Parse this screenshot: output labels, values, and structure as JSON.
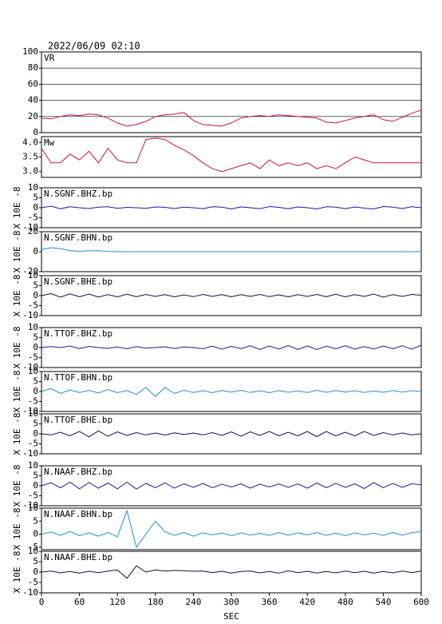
{
  "chart_data": {
    "type": "line",
    "title": "2022/06/09 02:10",
    "xlabel": "SEC",
    "ylabel": "X 10E -8",
    "x": [
      0,
      15,
      30,
      45,
      60,
      75,
      90,
      105,
      120,
      135,
      150,
      165,
      180,
      195,
      210,
      225,
      240,
      255,
      270,
      285,
      300,
      315,
      330,
      345,
      360,
      375,
      390,
      405,
      420,
      435,
      450,
      465,
      480,
      495,
      510,
      525,
      540,
      555,
      570,
      585,
      600
    ],
    "xlim": [
      0,
      600
    ],
    "xticks": [
      0,
      60,
      120,
      180,
      240,
      300,
      360,
      420,
      480,
      540,
      600
    ],
    "panels": [
      {
        "name": "VR",
        "color": "#d0103a",
        "grid": true,
        "ylim": [
          0,
          100
        ],
        "yticks": [
          0,
          20,
          40,
          60,
          80,
          100
        ],
        "values": [
          18,
          17,
          20,
          22,
          21,
          23,
          22,
          18,
          12,
          8,
          10,
          14,
          20,
          22,
          23,
          25,
          15,
          10,
          9,
          8,
          12,
          18,
          20,
          21,
          20,
          22,
          21,
          20,
          19,
          18,
          13,
          12,
          15,
          18,
          20,
          22,
          16,
          14,
          19,
          24,
          28
        ]
      },
      {
        "name": "Mw",
        "color": "#d0103a",
        "grid": false,
        "ylim": [
          2.8,
          4.2
        ],
        "yticks": [
          {
            "value": 3,
            "label": "3.0"
          },
          3.5,
          {
            "value": 4,
            "label": "4.0"
          }
        ],
        "values": [
          3.8,
          3.3,
          3.3,
          3.6,
          3.4,
          3.7,
          3.3,
          3.8,
          3.4,
          3.3,
          3.3,
          4.1,
          4.15,
          4.1,
          3.9,
          3.75,
          3.55,
          3.3,
          3.1,
          3.0,
          3.1,
          3.2,
          3.3,
          3.1,
          3.4,
          3.2,
          3.3,
          3.2,
          3.3,
          3.1,
          3.2,
          3.1,
          3.3,
          3.5,
          3.4,
          3.3,
          3.3,
          3.3,
          3.3,
          3.3,
          3.3
        ]
      },
      {
        "name": "N.SGNF.BHZ.bp",
        "color": "#1a1aa0",
        "grid": false,
        "ylim": [
          -10,
          10
        ],
        "yticks": [
          -10,
          -5,
          0,
          5,
          10
        ],
        "values": [
          0,
          0.8,
          -0.5,
          0.5,
          0,
          -0.4,
          0.3,
          0.5,
          -0.3,
          0.2,
          0,
          -0.3,
          0.4,
          0.2,
          -0.4,
          0.3,
          0,
          -0.5,
          0.5,
          0.3,
          -0.6,
          0.4,
          0,
          -0.5,
          0.6,
          0.2,
          -0.5,
          0.4,
          0,
          -0.6,
          0.5,
          0.3,
          -0.5,
          0.4,
          -0.2,
          -0.6,
          0.6,
          0.3,
          -0.4,
          0.5,
          0
        ]
      },
      {
        "name": "N.SGNF.BHN.bp",
        "color": "#2090d0",
        "grid": false,
        "ylim": [
          -20,
          20
        ],
        "yticks": [
          -20,
          0,
          20
        ],
        "values": [
          2,
          4,
          3,
          1,
          0.5,
          0.8,
          1,
          0.3,
          0,
          0,
          0,
          0,
          0,
          0,
          0,
          0,
          0,
          0,
          0,
          0,
          0,
          0,
          0,
          0,
          0,
          0,
          0,
          0,
          0,
          0,
          0,
          0,
          0,
          0,
          0,
          0,
          0,
          0,
          0,
          0,
          0
        ]
      },
      {
        "name": "N.SGNF.BHE.bp",
        "color": "#101040",
        "grid": false,
        "ylim": [
          -10,
          10
        ],
        "yticks": [
          -10,
          -5,
          0,
          5,
          10
        ],
        "values": [
          0,
          1,
          -0.8,
          0.9,
          -0.6,
          0.8,
          -0.7,
          0.5,
          -0.6,
          0.7,
          -0.5,
          0.6,
          -0.4,
          0.5,
          -0.6,
          0.4,
          -0.5,
          0.6,
          -0.4,
          0.5,
          -0.6,
          0.5,
          -0.4,
          0.6,
          -0.5,
          0.4,
          -0.6,
          0.5,
          -0.4,
          0.6,
          -0.5,
          0.7,
          -0.6,
          0.5,
          -0.4,
          0.8,
          -0.7,
          0.5,
          -0.4,
          0.6,
          0.2
        ]
      },
      {
        "name": "N.TTOF.BHZ.bp",
        "color": "#1a1aa0",
        "grid": false,
        "ylim": [
          -10,
          10
        ],
        "yticks": [
          -10,
          -5,
          0,
          5,
          10
        ],
        "values": [
          0,
          0.5,
          0,
          0.8,
          -0.5,
          0.6,
          0,
          -0.4,
          0.3,
          -0.6,
          0.5,
          -0.3,
          0,
          0.4,
          -0.5,
          0.3,
          0,
          -0.6,
          0.7,
          -0.8,
          0.6,
          -0.5,
          0.9,
          -1,
          0.8,
          -0.7,
          1,
          -0.9,
          0.8,
          -1,
          0.7,
          -0.6,
          0.9,
          -0.8,
          0.5,
          -0.7,
          0.8,
          -0.6,
          0.9,
          -0.8,
          1.2
        ]
      },
      {
        "name": "N.TTOF.BHN.bp",
        "color": "#2090d0",
        "grid": false,
        "ylim": [
          -10,
          10
        ],
        "yticks": [
          -10,
          -5,
          0,
          5,
          10
        ],
        "values": [
          0,
          1.5,
          -1,
          0.8,
          -0.5,
          0.6,
          -0.8,
          1,
          -0.6,
          0.5,
          -1.5,
          2,
          -2.5,
          2,
          -1,
          0.6,
          -0.5,
          0.4,
          -0.6,
          0.5,
          -0.3,
          0.6,
          -0.5,
          0.4,
          -0.6,
          0.5,
          -0.4,
          0.3,
          -0.5,
          0.6,
          -0.4,
          0.5,
          -0.3,
          0.4,
          -0.5,
          0.3,
          -0.4,
          0.5,
          -0.3,
          0.4,
          0
        ]
      },
      {
        "name": "N.TTOF.BHE.bp",
        "color": "#101040",
        "grid": false,
        "ylim": [
          -10,
          10
        ],
        "yticks": [
          -10,
          -5,
          0,
          5,
          10
        ],
        "values": [
          0,
          -0.5,
          0.8,
          -1,
          1.2,
          -1.5,
          1.5,
          -1.2,
          1,
          -0.8,
          0.6,
          -0.5,
          0.4,
          -0.6,
          0.5,
          -0.3,
          0.4,
          -0.5,
          0.6,
          -0.8,
          1,
          -1.2,
          1,
          -0.8,
          1.2,
          -1,
          0.8,
          -1,
          1.2,
          -1.4,
          1.2,
          -1,
          0.8,
          -1,
          1.2,
          -0.8,
          0.6,
          -0.5,
          0.4,
          -0.5,
          0
        ]
      },
      {
        "name": "N.NAAF.BHZ.bp",
        "color": "#1a1aa0",
        "grid": false,
        "ylim": [
          -10,
          10
        ],
        "yticks": [
          -10,
          -5,
          0,
          5,
          10
        ],
        "values": [
          0,
          1.5,
          -1,
          1.8,
          -1.5,
          1.6,
          -1.2,
          1.4,
          -1.5,
          1.8,
          -1.6,
          1.2,
          -1,
          1.5,
          -1.2,
          1,
          -0.8,
          1.2,
          -1,
          0.8,
          -0.6,
          1,
          -1.2,
          0.8,
          -0.6,
          0.9,
          -0.8,
          1,
          -1.2,
          1.4,
          -1,
          1.2,
          -0.8,
          1,
          -1.4,
          1.6,
          -1,
          1.2,
          -0.8,
          1,
          0.5
        ]
      },
      {
        "name": "N.NAAF.BHN.bp",
        "color": "#2090d0",
        "grid": false,
        "ylim": [
          -6,
          10
        ],
        "yticks": [
          -5,
          0,
          5,
          10
        ],
        "values": [
          0,
          0.8,
          -0.5,
          1,
          -0.6,
          0.5,
          -0.8,
          0.6,
          -1,
          9,
          -5,
          0,
          5,
          1,
          -0.5,
          0.6,
          -0.8,
          0.5,
          -0.3,
          0.4,
          -0.6,
          0.5,
          -0.4,
          0.3,
          -0.5,
          0.6,
          -0.4,
          0.5,
          -0.3,
          0.6,
          -0.5,
          0.4,
          -0.6,
          0.5,
          -0.3,
          0.4,
          -0.5,
          0.6,
          -0.4,
          0.5,
          1
        ]
      },
      {
        "name": "N.NAAF.BHE.bp",
        "color": "#101040",
        "grid": false,
        "ylim": [
          -10,
          10
        ],
        "yticks": [
          -10,
          -5,
          0,
          5,
          10
        ],
        "values": [
          0,
          0.5,
          -0.4,
          0.3,
          -0.5,
          0.4,
          -0.3,
          0.5,
          1,
          -3,
          3,
          0,
          1,
          0.5,
          0.8,
          0.6,
          0.4,
          0.5,
          -0.3,
          0.4,
          -0.5,
          0.3,
          0.5,
          -0.4,
          0.3,
          -0.5,
          0.6,
          -0.3,
          0.4,
          -0.5,
          0.3,
          -0.4,
          0.5,
          -0.3,
          0.4,
          -0.5,
          0.3,
          -0.4,
          0.5,
          -0.3,
          0.5
        ]
      }
    ]
  }
}
